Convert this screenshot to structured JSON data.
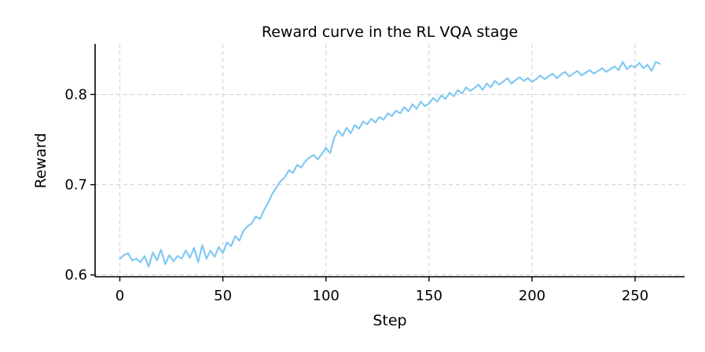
{
  "chart_data": {
    "type": "line",
    "title": "Reward curve in the RL VQA stage",
    "xlabel": "Step",
    "ylabel": "Reward",
    "xlim": [
      -12,
      274
    ],
    "ylim": [
      0.598,
      0.856
    ],
    "xticks": [
      0,
      50,
      100,
      150,
      200,
      250
    ],
    "yticks": [
      0.6,
      0.7,
      0.8
    ],
    "grid": true,
    "line_color": "#82c9f2",
    "series": [
      {
        "x": [
          0,
          2,
          4,
          6,
          8,
          10,
          12,
          14,
          16,
          18,
          20,
          22,
          24,
          26,
          28,
          30,
          32,
          34,
          36,
          38,
          40,
          42,
          44,
          46,
          48,
          50,
          52,
          54,
          56,
          58,
          60,
          62,
          64,
          66,
          68,
          70,
          72,
          74,
          76,
          78,
          80,
          82,
          84,
          86,
          88,
          90,
          92,
          94,
          96,
          98,
          100,
          102,
          104,
          106,
          108,
          110,
          112,
          114,
          116,
          118,
          120,
          122,
          124,
          126,
          128,
          130,
          132,
          134,
          136,
          138,
          140,
          142,
          144,
          146,
          148,
          150,
          152,
          154,
          156,
          158,
          160,
          162,
          164,
          166,
          168,
          170,
          172,
          174,
          176,
          178,
          180,
          182,
          184,
          186,
          188,
          190,
          192,
          194,
          196,
          198,
          200,
          202,
          204,
          206,
          208,
          210,
          212,
          214,
          216,
          218,
          220,
          222,
          224,
          226,
          228,
          230,
          232,
          234,
          236,
          238,
          240,
          242,
          244,
          246,
          248,
          250,
          252,
          254,
          256,
          258,
          260,
          262
        ],
        "values": [
          0.618,
          0.622,
          0.624,
          0.616,
          0.618,
          0.614,
          0.621,
          0.609,
          0.625,
          0.616,
          0.628,
          0.612,
          0.622,
          0.615,
          0.621,
          0.618,
          0.627,
          0.619,
          0.63,
          0.614,
          0.633,
          0.618,
          0.627,
          0.62,
          0.631,
          0.624,
          0.636,
          0.632,
          0.643,
          0.638,
          0.649,
          0.654,
          0.657,
          0.665,
          0.662,
          0.672,
          0.68,
          0.69,
          0.697,
          0.704,
          0.708,
          0.716,
          0.713,
          0.722,
          0.719,
          0.726,
          0.73,
          0.733,
          0.728,
          0.734,
          0.741,
          0.735,
          0.752,
          0.76,
          0.754,
          0.763,
          0.757,
          0.766,
          0.762,
          0.77,
          0.767,
          0.773,
          0.769,
          0.775,
          0.772,
          0.779,
          0.776,
          0.782,
          0.779,
          0.786,
          0.781,
          0.789,
          0.784,
          0.792,
          0.787,
          0.79,
          0.796,
          0.792,
          0.799,
          0.795,
          0.802,
          0.798,
          0.805,
          0.801,
          0.808,
          0.804,
          0.807,
          0.811,
          0.805,
          0.812,
          0.808,
          0.815,
          0.811,
          0.814,
          0.818,
          0.812,
          0.816,
          0.819,
          0.815,
          0.818,
          0.814,
          0.817,
          0.821,
          0.817,
          0.82,
          0.823,
          0.818,
          0.822,
          0.825,
          0.82,
          0.823,
          0.826,
          0.821,
          0.824,
          0.827,
          0.823,
          0.826,
          0.829,
          0.825,
          0.828,
          0.831,
          0.827,
          0.836,
          0.828,
          0.832,
          0.83,
          0.835,
          0.829,
          0.833,
          0.826,
          0.836,
          0.834
        ]
      }
    ]
  }
}
